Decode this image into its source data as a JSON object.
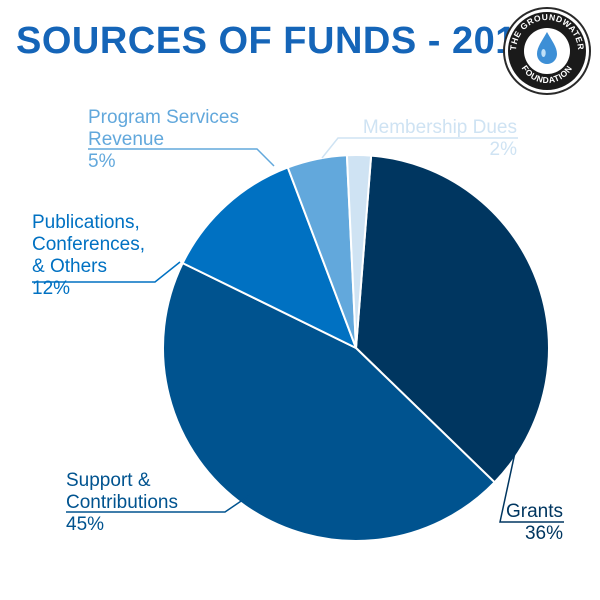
{
  "title": "SOURCES OF FUNDS - 2015",
  "logo": {
    "text_top": "THE GROUNDWATER",
    "text_bottom": "FOUNDATION",
    "icon": "water-drop-icon"
  },
  "colors": {
    "title": "#1565b8",
    "slices": [
      "#003660",
      "#00538f",
      "#0071c2",
      "#62a8dc",
      "#cfe3f3"
    ]
  },
  "chart_data": {
    "type": "pie",
    "title": "SOURCES OF FUNDS - 2015",
    "slices": [
      {
        "label": "Grants",
        "value": 36
      },
      {
        "label": "Support & Contributions",
        "value": 45
      },
      {
        "label": "Publications, Conferences, & Others",
        "value": 12
      },
      {
        "label": "Program Services Revenue",
        "value": 5
      },
      {
        "label": "Membership Dues",
        "value": 2
      }
    ]
  },
  "labels": {
    "grants": {
      "lines": [
        "Grants"
      ],
      "pct": "36%"
    },
    "support": {
      "lines": [
        "Support &",
        "Contributions"
      ],
      "pct": "45%"
    },
    "publications": {
      "lines": [
        "Publications,",
        "Conferences,",
        "& Others"
      ],
      "pct": "12%"
    },
    "program": {
      "lines": [
        "Program Services",
        "Revenue"
      ],
      "pct": "5%"
    },
    "membership": {
      "lines": [
        "Membership Dues"
      ],
      "pct": "2%"
    }
  }
}
